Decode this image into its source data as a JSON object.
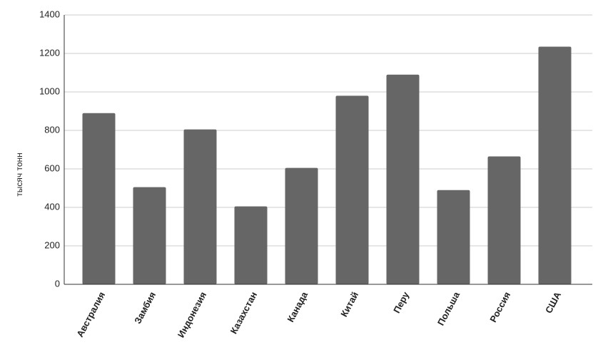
{
  "chart_data": {
    "type": "bar",
    "y_label": "тысяч тонн",
    "categories": [
      "Австралия",
      "Замбия",
      "Индонезия",
      "Казахстан",
      "Канада",
      "Китай",
      "Перу",
      "Польша",
      "Россия",
      "США"
    ],
    "values": [
      890,
      505,
      805,
      405,
      605,
      980,
      1090,
      490,
      665,
      1235
    ],
    "color": "#666666",
    "ylim": [
      0,
      1400
    ],
    "yticks": [
      0,
      200,
      400,
      600,
      800,
      1000,
      1200,
      1400
    ],
    "grid": true
  }
}
